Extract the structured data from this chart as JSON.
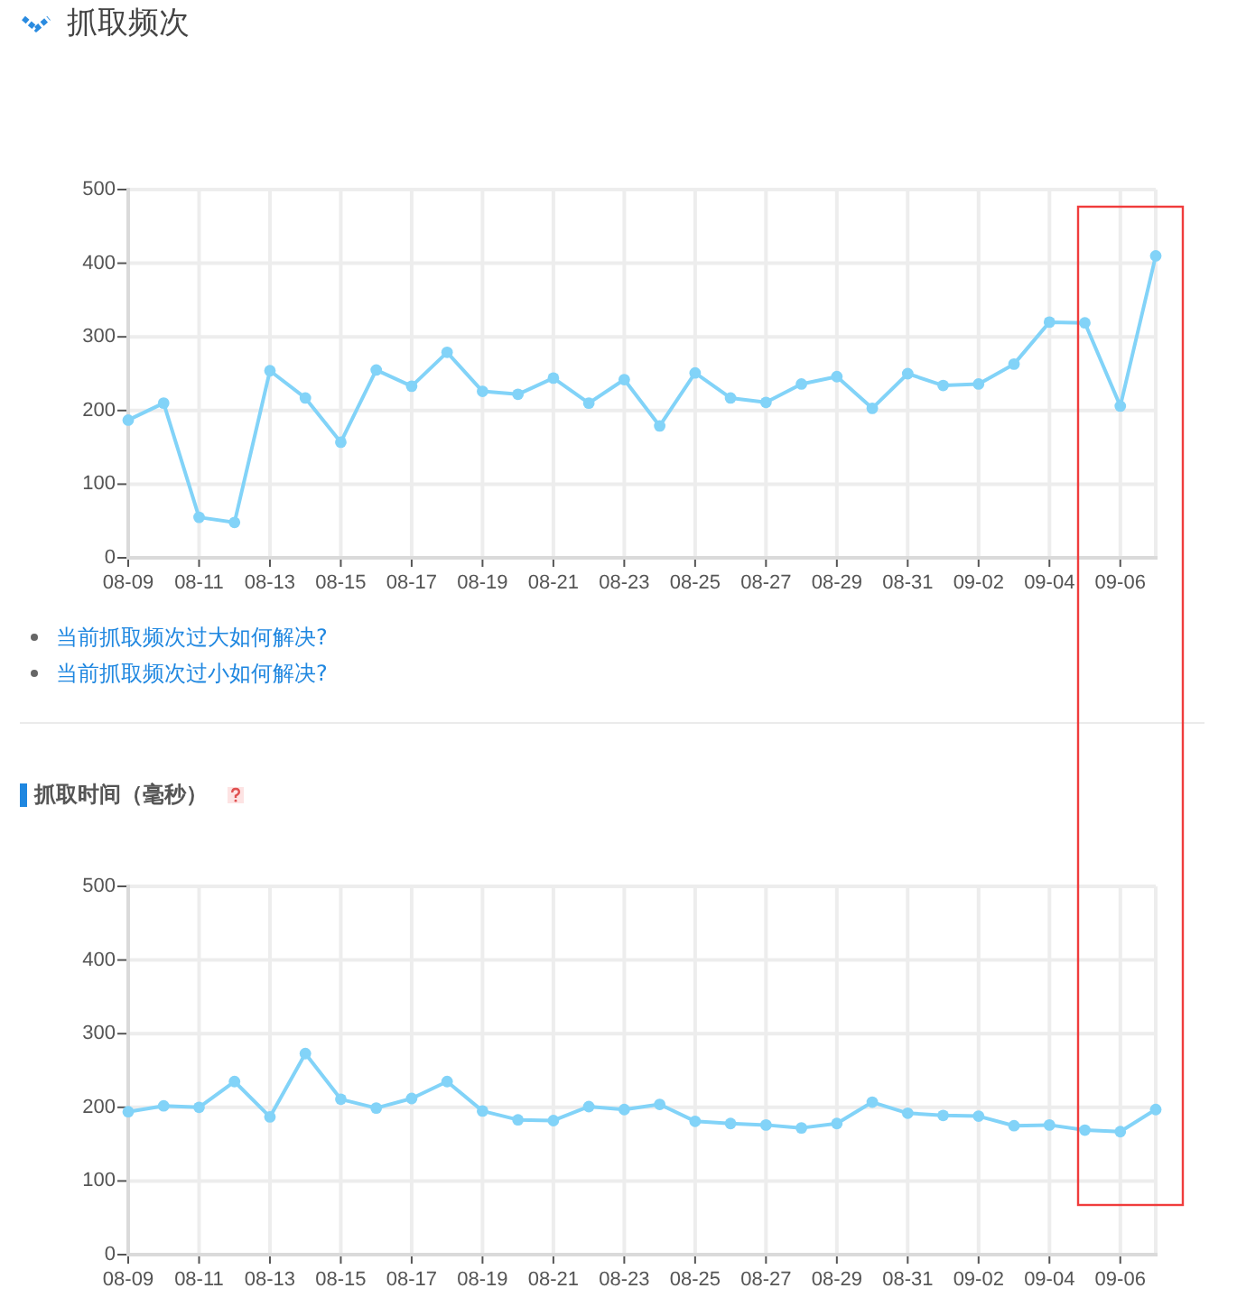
{
  "chart_data": [
    {
      "type": "line",
      "title": "抓取频次",
      "annotations": [
        "当前抓取频次过大如何解决?",
        "当前抓取频次过小如何解决?"
      ],
      "categories": [
        "08-09",
        null,
        "08-11",
        null,
        "08-13",
        null,
        "08-15",
        null,
        "08-17",
        null,
        "08-19",
        null,
        "08-21",
        null,
        "08-23",
        null,
        "08-25",
        null,
        "08-27",
        null,
        "08-29",
        null,
        "08-31",
        null,
        "09-02",
        null,
        "09-04",
        null,
        "09-06",
        null
      ],
      "series": [
        {
          "color": "#82d3f8",
          "values": [
            187,
            210,
            55,
            48,
            254,
            217,
            157,
            255,
            233,
            279,
            226,
            222,
            244,
            210,
            242,
            179,
            251,
            217,
            211,
            236,
            246,
            203,
            250,
            234,
            236,
            263,
            320,
            319,
            206,
            410
          ]
        }
      ],
      "ylim": [
        0,
        500
      ],
      "yticks": [
        0,
        100,
        200,
        300,
        400,
        500
      ],
      "grid": true,
      "marker": "circle"
    },
    {
      "type": "line",
      "title": "抓取时间（毫秒）",
      "categories": [
        "08-09",
        null,
        "08-11",
        null,
        "08-13",
        null,
        "08-15",
        null,
        "08-17",
        null,
        "08-19",
        null,
        "08-21",
        null,
        "08-23",
        null,
        "08-25",
        null,
        "08-27",
        null,
        "08-29",
        null,
        "08-31",
        null,
        "09-02",
        null,
        "09-04",
        null,
        "09-06",
        null
      ],
      "series": [
        {
          "color": "#82d3f8",
          "values": [
            194,
            202,
            200,
            235,
            187,
            273,
            211,
            199,
            212,
            235,
            195,
            183,
            182,
            201,
            197,
            204,
            181,
            178,
            176,
            172,
            178,
            207,
            192,
            189,
            188,
            175,
            176,
            169,
            167,
            197
          ]
        }
      ],
      "ylim": [
        0,
        500
      ],
      "yticks": [
        0,
        100,
        200,
        300,
        400,
        500
      ],
      "grid": true,
      "marker": "circle"
    }
  ]
}
